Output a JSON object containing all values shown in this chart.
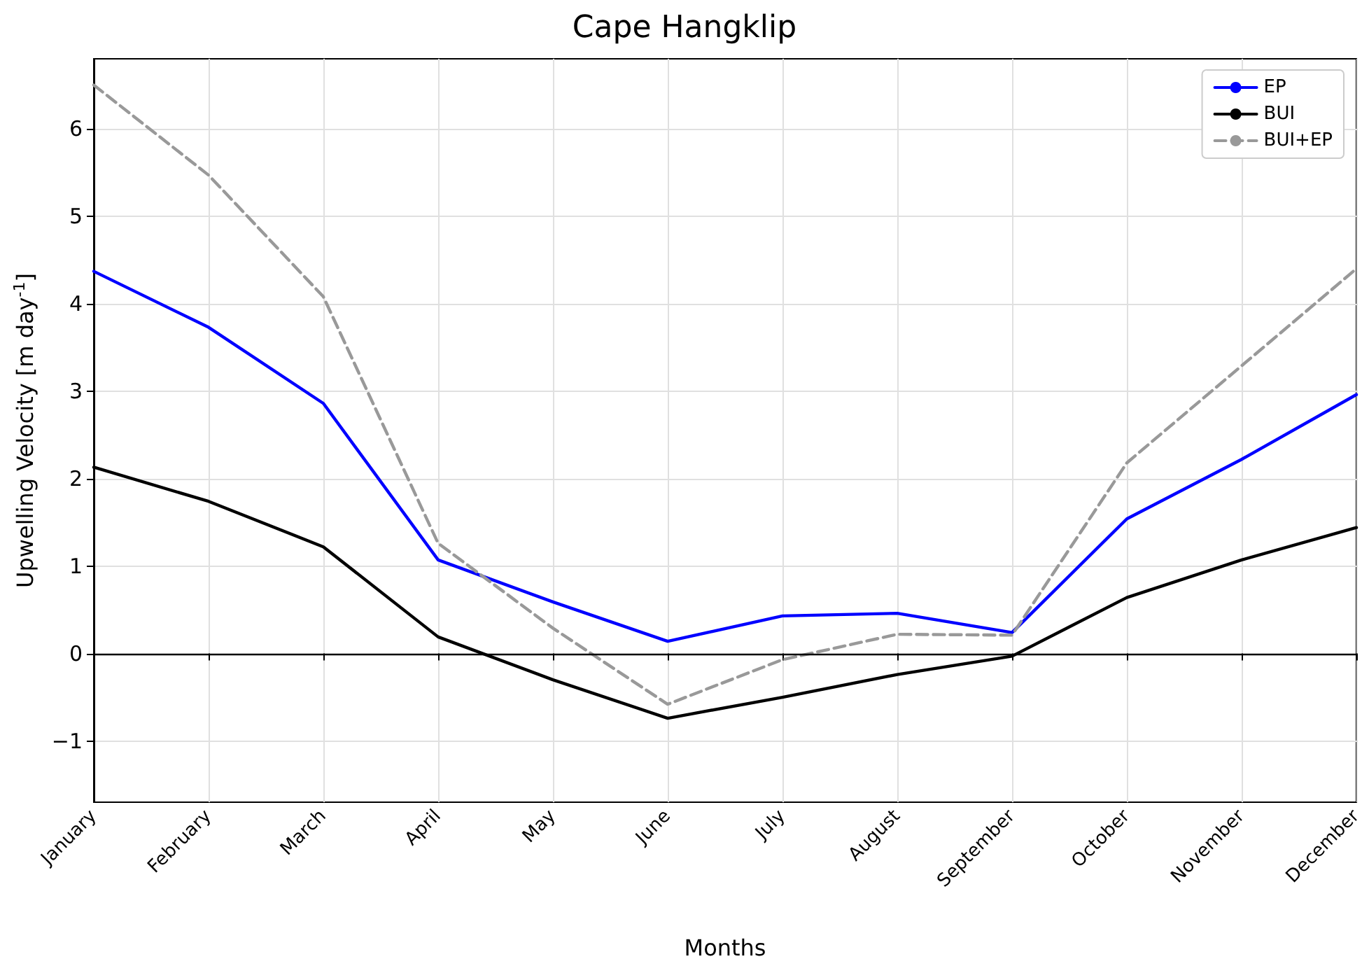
{
  "chart_data": {
    "type": "line",
    "title": "Cape Hangklip",
    "xlabel": "Months",
    "ylabel": "Upwelling Velocity [m day$^{-1}$]",
    "categories": [
      "January",
      "February",
      "March",
      "April",
      "May",
      "June",
      "July",
      "August",
      "September",
      "October",
      "November",
      "December"
    ],
    "series": [
      {
        "name": "EP",
        "color": "#0000ff",
        "line_style": "solid",
        "values": [
          4.37,
          3.73,
          2.86,
          1.07,
          0.59,
          0.14,
          0.43,
          0.46,
          0.24,
          1.54,
          2.22,
          2.96
        ]
      },
      {
        "name": "BUI",
        "color": "#000000",
        "line_style": "solid",
        "values": [
          2.13,
          1.74,
          1.22,
          0.19,
          -0.3,
          -0.74,
          -0.5,
          -0.24,
          -0.03,
          0.64,
          1.07,
          1.44
        ]
      },
      {
        "name": "BUI+EP",
        "color": "#999999",
        "line_style": "dashed",
        "values": [
          6.5,
          5.47,
          4.08,
          1.26,
          0.29,
          -0.58,
          -0.07,
          0.22,
          0.21,
          2.18,
          3.29,
          4.4
        ]
      }
    ],
    "ylim": [
      -1.7,
      6.8
    ],
    "yticks": [
      -1,
      0,
      1,
      2,
      3,
      4,
      5,
      6
    ],
    "ref_lines": [
      {
        "axis": "y",
        "value": 0,
        "color": "#000000"
      }
    ],
    "grid": true,
    "legend": "top right",
    "marker": "none"
  }
}
